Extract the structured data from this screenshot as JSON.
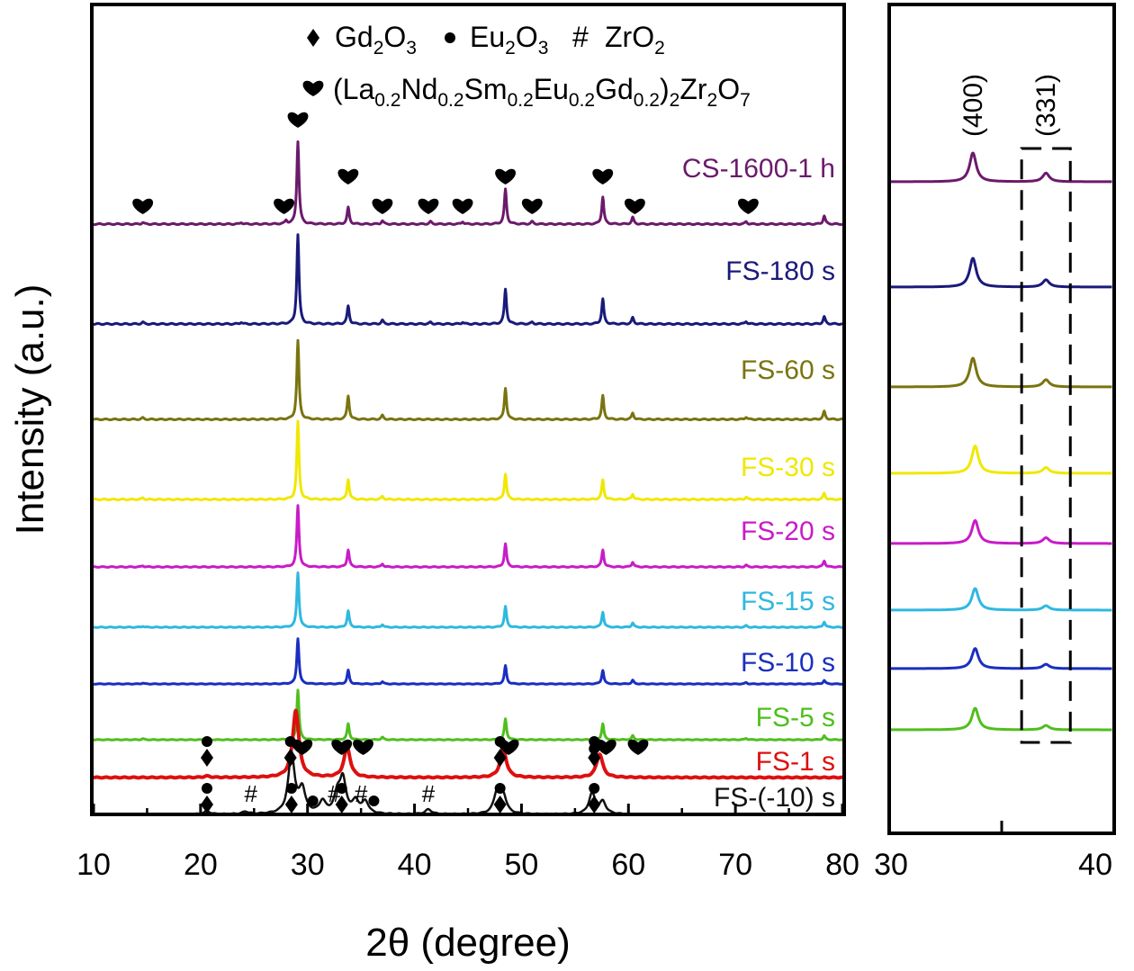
{
  "chart_data": [
    {
      "type": "line",
      "panel": "main",
      "xlim": [
        10,
        80
      ],
      "x_ticks": [
        "10",
        "20",
        "30",
        "40",
        "50",
        "60",
        "70",
        "80"
      ],
      "xlabel": "2θ (degree)",
      "ylabel": "Intensity (a.u.)",
      "y_ticks": "none",
      "grid": false,
      "legend": {
        "placement": "top-center",
        "line1": [
          {
            "marker": "diamond",
            "text": [
              "Gd",
              "2",
              "O",
              "3"
            ]
          },
          {
            "marker": "dot",
            "text": [
              "Eu",
              "2",
              "O",
              "3"
            ]
          },
          {
            "marker": "#",
            "text": [
              "ZrO",
              "2"
            ]
          }
        ],
        "line2": {
          "marker": "heart",
          "text": [
            "(La",
            "0.2",
            "Nd",
            "0.2",
            "Sm",
            "0.2",
            "Eu",
            "0.2",
            "Gd",
            "0.2",
            ")",
            "2",
            "Zr",
            "2",
            "O",
            "7"
          ]
        }
      },
      "series": [
        {
          "name": "CS-1600-1 h",
          "color": "#6b1a6b",
          "kind": "pyro",
          "scale": 1.0,
          "width": 1.0,
          "peaks": [
            [
              14.6,
              0.02
            ],
            [
              23.8,
              0.02
            ],
            [
              28.0,
              0.04
            ],
            [
              29.1,
              1.0
            ],
            [
              33.8,
              0.2
            ],
            [
              37.0,
              0.04
            ],
            [
              41.5,
              0.03
            ],
            [
              44.5,
              0.03
            ],
            [
              48.5,
              0.42
            ],
            [
              51.0,
              0.03
            ],
            [
              57.6,
              0.33
            ],
            [
              60.4,
              0.08
            ],
            [
              71.0,
              0.03
            ],
            [
              78.3,
              0.1
            ]
          ]
        },
        {
          "name": "FS-180 s",
          "color": "#1a1a7a",
          "kind": "pyro",
          "scale": 1.08,
          "width": 1.0,
          "peaks": [
            [
              14.6,
              0.02
            ],
            [
              23.8,
              0.02
            ],
            [
              29.1,
              1.0
            ],
            [
              33.8,
              0.2
            ],
            [
              37.0,
              0.04
            ],
            [
              41.5,
              0.02
            ],
            [
              44.5,
              0.02
            ],
            [
              48.5,
              0.39
            ],
            [
              51.0,
              0.02
            ],
            [
              57.6,
              0.28
            ],
            [
              60.4,
              0.07
            ],
            [
              71.0,
              0.03
            ],
            [
              78.3,
              0.08
            ]
          ]
        },
        {
          "name": "FS-60 s",
          "color": "#7a7410",
          "kind": "pyro",
          "scale": 0.95,
          "width": 1.0,
          "peaks": [
            [
              14.6,
              0.02
            ],
            [
              29.1,
              1.0
            ],
            [
              33.8,
              0.3
            ],
            [
              37.0,
              0.05
            ],
            [
              48.5,
              0.4
            ],
            [
              57.6,
              0.3
            ],
            [
              60.4,
              0.08
            ],
            [
              71.0,
              0.03
            ],
            [
              78.3,
              0.1
            ]
          ]
        },
        {
          "name": "FS-30 s",
          "color": "#f0e800",
          "kind": "pyro",
          "scale": 0.94,
          "width": 1.0,
          "peaks": [
            [
              14.6,
              0.02
            ],
            [
              29.1,
              1.0
            ],
            [
              33.8,
              0.26
            ],
            [
              37.0,
              0.04
            ],
            [
              48.5,
              0.33
            ],
            [
              57.6,
              0.25
            ],
            [
              60.4,
              0.07
            ],
            [
              71.0,
              0.03
            ],
            [
              78.3,
              0.08
            ]
          ]
        },
        {
          "name": "FS-20 s",
          "color": "#c81bc8",
          "kind": "pyro",
          "scale": 0.74,
          "width": 1.0,
          "peaks": [
            [
              14.6,
              0.02
            ],
            [
              29.1,
              1.0
            ],
            [
              33.8,
              0.28
            ],
            [
              37.0,
              0.05
            ],
            [
              48.5,
              0.38
            ],
            [
              57.6,
              0.28
            ],
            [
              60.4,
              0.08
            ],
            [
              71.0,
              0.03
            ],
            [
              78.3,
              0.1
            ]
          ]
        },
        {
          "name": "FS-15 s",
          "color": "#2fb8e0",
          "kind": "pyro",
          "scale": 0.66,
          "width": 1.0,
          "peaks": [
            [
              14.6,
              0.02
            ],
            [
              29.1,
              1.0
            ],
            [
              33.8,
              0.3
            ],
            [
              37.0,
              0.05
            ],
            [
              48.5,
              0.38
            ],
            [
              57.6,
              0.28
            ],
            [
              60.4,
              0.08
            ],
            [
              71.0,
              0.03
            ],
            [
              78.3,
              0.1
            ]
          ]
        },
        {
          "name": "FS-10 s",
          "color": "#1a2fc0",
          "kind": "pyro",
          "scale": 0.55,
          "width": 1.0,
          "peaks": [
            [
              14.6,
              0.02
            ],
            [
              29.1,
              1.0
            ],
            [
              33.8,
              0.3
            ],
            [
              37.0,
              0.05
            ],
            [
              48.5,
              0.4
            ],
            [
              57.6,
              0.3
            ],
            [
              60.4,
              0.08
            ],
            [
              71.0,
              0.03
            ],
            [
              78.3,
              0.08
            ]
          ]
        },
        {
          "name": "FS-5 s",
          "color": "#4fbf1e",
          "kind": "pyro",
          "scale": 0.6,
          "width": 1.0,
          "peaks": [
            [
              14.6,
              0.02
            ],
            [
              29.1,
              1.0
            ],
            [
              33.8,
              0.32
            ],
            [
              37.0,
              0.05
            ],
            [
              48.5,
              0.42
            ],
            [
              57.6,
              0.32
            ],
            [
              60.4,
              0.08
            ],
            [
              71.0,
              0.03
            ],
            [
              78.3,
              0.08
            ]
          ]
        },
        {
          "name": "FS-1 s",
          "color": "#dd1010",
          "kind": "mixed",
          "scale": 0.18,
          "width": 4.0,
          "peaks": [
            [
              20.6,
              0.02
            ],
            [
              28.9,
              1.0
            ],
            [
              33.7,
              0.45
            ],
            [
              48.3,
              0.42
            ],
            [
              57.3,
              0.35
            ]
          ]
        },
        {
          "name": "FS-(-10) s",
          "color": "#111111",
          "kind": "raw",
          "scale": 0.16,
          "width": 2.5,
          "peaks": [
            [
              20.6,
              0.05
            ],
            [
              24.2,
              0.04
            ],
            [
              28.5,
              1.0
            ],
            [
              29.5,
              0.4
            ],
            [
              31.4,
              0.2
            ],
            [
              32.8,
              0.3
            ],
            [
              33.3,
              0.55
            ],
            [
              34.5,
              0.2
            ],
            [
              35.4,
              0.2
            ],
            [
              41.3,
              0.08
            ],
            [
              47.7,
              0.35
            ],
            [
              48.3,
              0.3
            ],
            [
              56.6,
              0.35
            ],
            [
              57.6,
              0.2
            ]
          ]
        }
      ],
      "phase_markers": [
        {
          "series": "CS-1600-1 h",
          "marker": "heart",
          "x": [
            14.6,
            27.8,
            29.1,
            33.8,
            37.0,
            41.3,
            44.5,
            48.5,
            51.0,
            57.6,
            60.6,
            71.2
          ]
        },
        {
          "series": "FS-1 s",
          "marker": "dot-over-diamond",
          "x": [
            20.6,
            28.4,
            48.0,
            56.8
          ]
        },
        {
          "series": "FS-1 s",
          "marker": "heart",
          "x": [
            29.5,
            33.2,
            35.2,
            48.8,
            57.9,
            60.9
          ]
        },
        {
          "series": "FS-1 s",
          "marker": "dot",
          "x": [
            33.2,
            56.8
          ]
        },
        {
          "series": "FS-(-10) s",
          "marker": "dot-over-diamond",
          "x": [
            20.6,
            28.5,
            33.2,
            48.0,
            56.8
          ]
        },
        {
          "series": "FS-(-10) s",
          "marker": "#",
          "x": [
            24.7,
            32.5,
            35.0,
            41.3
          ]
        },
        {
          "series": "FS-(-10) s",
          "marker": "dot",
          "x": [
            30.5,
            36.2
          ]
        }
      ]
    },
    {
      "type": "line",
      "panel": "inset",
      "xlim": [
        30,
        40
      ],
      "x_ticks": [
        "30",
        "40"
      ],
      "peak_labels": [
        "(400)",
        "(331)"
      ],
      "highlight_box": "dashed",
      "series": [
        {
          "name": "CS-1600-1 h",
          "color": "#6b1a6b",
          "peaks": [
            [
              33.7,
              1.0
            ],
            [
              37.0,
              0.3
            ]
          ]
        },
        {
          "name": "FS-180 s",
          "color": "#1a1a7a",
          "peaks": [
            [
              33.7,
              1.0
            ],
            [
              37.0,
              0.25
            ]
          ]
        },
        {
          "name": "FS-60 s",
          "color": "#7a7410",
          "peaks": [
            [
              33.7,
              1.0
            ],
            [
              37.0,
              0.25
            ]
          ]
        },
        {
          "name": "FS-30 s",
          "color": "#f0e800",
          "peaks": [
            [
              33.8,
              0.95
            ],
            [
              37.0,
              0.2
            ]
          ]
        },
        {
          "name": "FS-20 s",
          "color": "#c81bc8",
          "peaks": [
            [
              33.8,
              0.8
            ],
            [
              37.0,
              0.2
            ]
          ]
        },
        {
          "name": "FS-15 s",
          "color": "#2fb8e0",
          "peaks": [
            [
              33.8,
              0.75
            ],
            [
              37.0,
              0.15
            ]
          ]
        },
        {
          "name": "FS-10 s",
          "color": "#1a2fc0",
          "peaks": [
            [
              33.8,
              0.7
            ],
            [
              37.0,
              0.15
            ]
          ]
        },
        {
          "name": "FS-5 s",
          "color": "#4fbf1e",
          "peaks": [
            [
              33.8,
              0.75
            ],
            [
              37.0,
              0.15
            ]
          ]
        }
      ]
    }
  ]
}
